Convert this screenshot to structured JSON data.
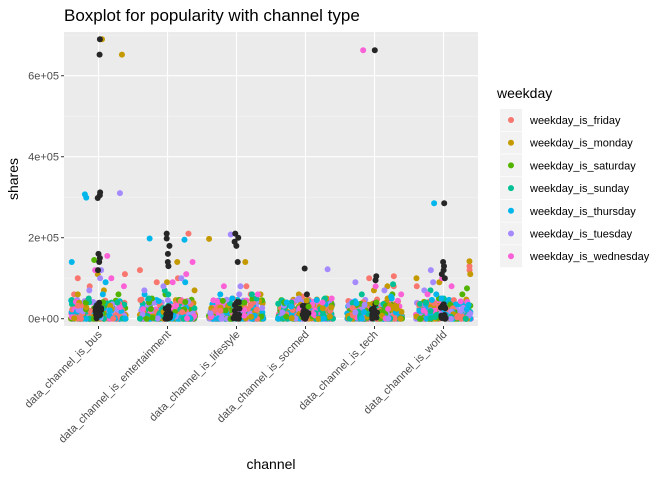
{
  "chart_data": {
    "type": "scatter",
    "title": "Boxplot for popularity with channel type",
    "xlabel": "channel",
    "ylabel": "shares",
    "categories": [
      "data_channel_is_bus",
      "data_channel_is_entertainment",
      "data_channel_is_lifestyle",
      "data_channel_is_socmed",
      "data_channel_is_tech",
      "data_channel_is_world"
    ],
    "ylim": [
      -18000,
      708000
    ],
    "y_ticks": [
      0,
      200000,
      400000,
      600000
    ],
    "y_tick_labels": [
      "0e+00",
      "2e+05",
      "4e+05",
      "6e+05"
    ],
    "grid": true,
    "legend_position": "right",
    "legend_title": "weekday",
    "series_colors": {
      "weekday_is_friday": "#F8766D",
      "weekday_is_monday": "#C49A00",
      "weekday_is_saturday": "#53B400",
      "weekday_is_sunday": "#00C094",
      "weekday_is_thursday": "#00B6EB",
      "weekday_is_tuesday": "#A58AFF",
      "weekday_is_wednesday": "#FB61D7"
    },
    "outlier_color": "#262626",
    "series": [
      {
        "name": "weekday_is_friday",
        "points": [
          [
            0,
            100000
          ],
          [
            0,
            110000
          ],
          [
            0,
            60000
          ],
          [
            0,
            80000
          ],
          [
            1,
            210000
          ],
          [
            1,
            100000
          ],
          [
            1,
            90000
          ],
          [
            1,
            120000
          ],
          [
            2,
            80000
          ],
          [
            2,
            50000
          ],
          [
            2,
            60000
          ],
          [
            3,
            55000
          ],
          [
            3,
            40000
          ],
          [
            3,
            30000
          ],
          [
            4,
            100000
          ],
          [
            4,
            105000
          ],
          [
            4,
            80000
          ],
          [
            5,
            130000
          ],
          [
            5,
            120000
          ],
          [
            5,
            80000
          ]
        ]
      },
      {
        "name": "weekday_is_monday",
        "points": [
          [
            0,
            690000
          ],
          [
            0,
            652000
          ],
          [
            0,
            110000
          ],
          [
            0,
            70000
          ],
          [
            0,
            60000
          ],
          [
            1,
            140000
          ],
          [
            1,
            90000
          ],
          [
            1,
            70000
          ],
          [
            2,
            197000
          ],
          [
            2,
            140000
          ],
          [
            2,
            60000
          ],
          [
            3,
            50000
          ],
          [
            3,
            45000
          ],
          [
            3,
            60000
          ],
          [
            4,
            80000
          ],
          [
            4,
            70000
          ],
          [
            4,
            50000
          ],
          [
            5,
            142000
          ],
          [
            5,
            110000
          ],
          [
            5,
            90000
          ],
          [
            5,
            100000
          ]
        ]
      },
      {
        "name": "weekday_is_saturday",
        "points": [
          [
            0,
            145000
          ],
          [
            0,
            60000
          ],
          [
            0,
            40000
          ],
          [
            1,
            50000
          ],
          [
            1,
            60000
          ],
          [
            1,
            40000
          ],
          [
            2,
            50000
          ],
          [
            2,
            40000
          ],
          [
            3,
            40000
          ],
          [
            3,
            30000
          ],
          [
            4,
            60000
          ],
          [
            4,
            40000
          ],
          [
            5,
            75000
          ],
          [
            5,
            50000
          ],
          [
            5,
            60000
          ]
        ]
      },
      {
        "name": "weekday_is_sunday",
        "points": [
          [
            0,
            50000
          ],
          [
            0,
            40000
          ],
          [
            1,
            70000
          ],
          [
            1,
            50000
          ],
          [
            1,
            60000
          ],
          [
            2,
            60000
          ],
          [
            2,
            50000
          ],
          [
            3,
            50000
          ],
          [
            3,
            40000
          ],
          [
            4,
            85000
          ],
          [
            4,
            60000
          ],
          [
            5,
            70000
          ],
          [
            5,
            50000
          ],
          [
            5,
            40000
          ]
        ]
      },
      {
        "name": "weekday_is_thursday",
        "points": [
          [
            0,
            307000
          ],
          [
            0,
            299000
          ],
          [
            0,
            140000
          ],
          [
            0,
            90000
          ],
          [
            0,
            60000
          ],
          [
            1,
            198000
          ],
          [
            1,
            195000
          ],
          [
            1,
            90000
          ],
          [
            1,
            60000
          ],
          [
            2,
            60000
          ],
          [
            2,
            50000
          ],
          [
            3,
            40000
          ],
          [
            3,
            30000
          ],
          [
            4,
            55000
          ],
          [
            4,
            50000
          ],
          [
            5,
            285000
          ],
          [
            5,
            60000
          ],
          [
            5,
            50000
          ]
        ]
      },
      {
        "name": "weekday_is_tuesday",
        "points": [
          [
            0,
            310000
          ],
          [
            0,
            120000
          ],
          [
            0,
            100000
          ],
          [
            0,
            70000
          ],
          [
            1,
            100000
          ],
          [
            1,
            80000
          ],
          [
            1,
            70000
          ],
          [
            2,
            208000
          ],
          [
            2,
            80000
          ],
          [
            2,
            60000
          ],
          [
            3,
            122000
          ],
          [
            3,
            50000
          ],
          [
            4,
            90000
          ],
          [
            4,
            70000
          ],
          [
            5,
            120000
          ],
          [
            5,
            90000
          ],
          [
            5,
            70000
          ]
        ]
      },
      {
        "name": "weekday_is_wednesday",
        "points": [
          [
            0,
            155000
          ],
          [
            0,
            120000
          ],
          [
            0,
            100000
          ],
          [
            0,
            80000
          ],
          [
            1,
            140000
          ],
          [
            1,
            110000
          ],
          [
            1,
            90000
          ],
          [
            2,
            80000
          ],
          [
            2,
            60000
          ],
          [
            3,
            50000
          ],
          [
            3,
            40000
          ],
          [
            4,
            663000
          ],
          [
            4,
            80000
          ],
          [
            4,
            60000
          ],
          [
            5,
            100000
          ],
          [
            5,
            80000
          ],
          [
            5,
            60000
          ]
        ]
      }
    ],
    "outliers": [
      [
        0,
        690000
      ],
      [
        0,
        652000
      ],
      [
        0,
        312000
      ],
      [
        0,
        305000
      ],
      [
        0,
        298000
      ],
      [
        0,
        160000
      ],
      [
        0,
        150000
      ],
      [
        0,
        140000
      ],
      [
        0,
        120000
      ],
      [
        1,
        210000
      ],
      [
        1,
        198000
      ],
      [
        1,
        180000
      ],
      [
        1,
        160000
      ],
      [
        1,
        140000
      ],
      [
        1,
        130000
      ],
      [
        2,
        210000
      ],
      [
        2,
        200000
      ],
      [
        2,
        190000
      ],
      [
        2,
        180000
      ],
      [
        2,
        140000
      ],
      [
        3,
        124000
      ],
      [
        3,
        60000
      ],
      [
        4,
        663000
      ],
      [
        4,
        105000
      ],
      [
        4,
        95000
      ],
      [
        5,
        285000
      ],
      [
        5,
        140000
      ],
      [
        5,
        130000
      ],
      [
        5,
        120000
      ],
      [
        5,
        110000
      ],
      [
        5,
        100000
      ]
    ]
  }
}
